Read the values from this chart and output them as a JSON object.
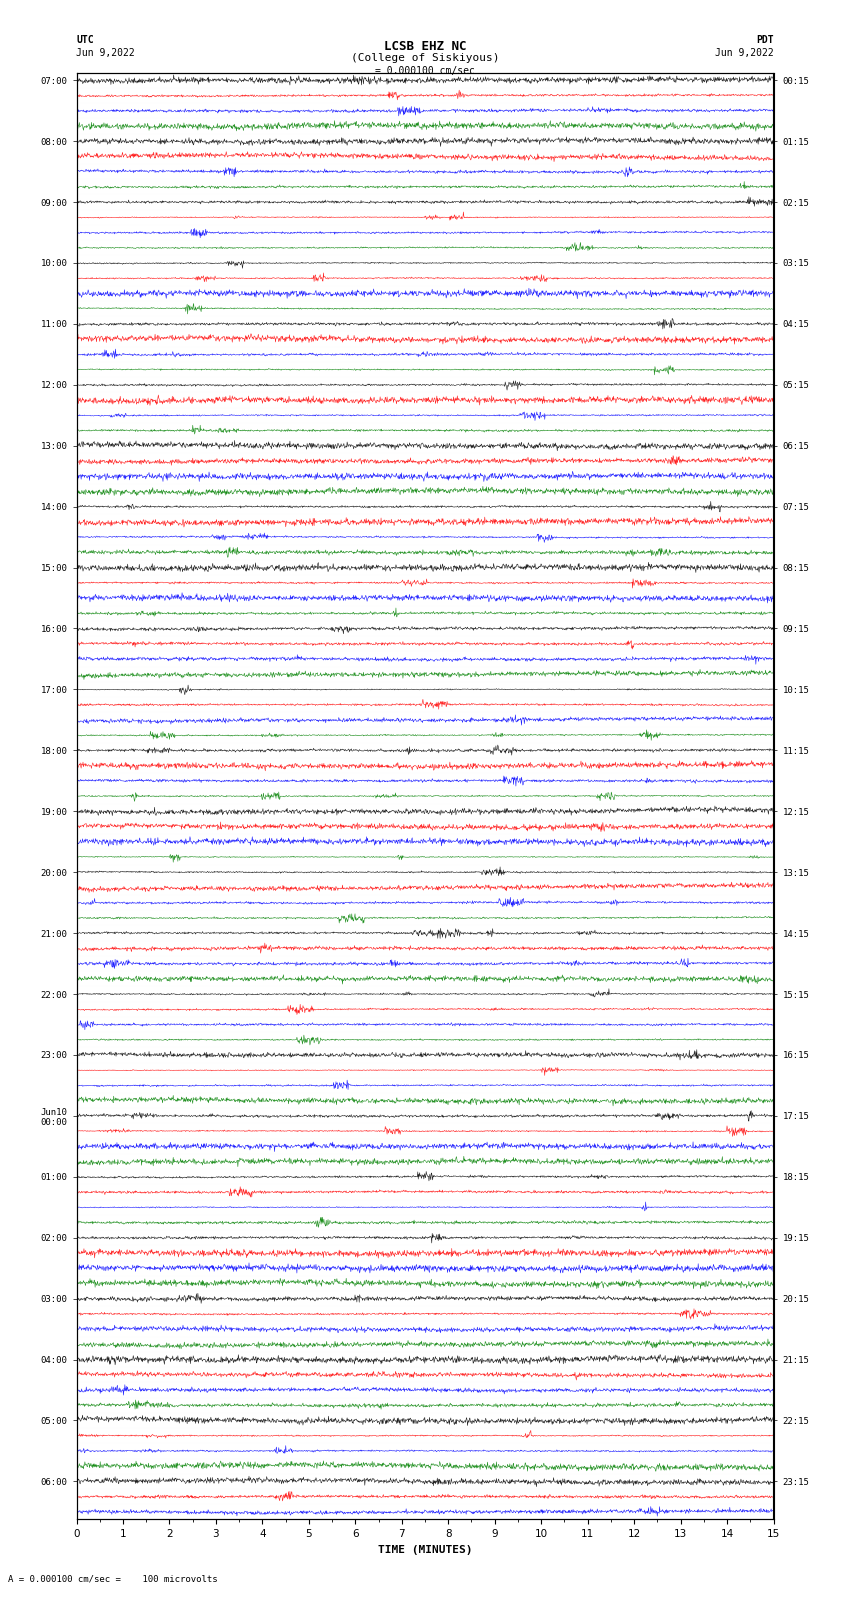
{
  "title_line1": "LCSB EHZ NC",
  "title_line2": "(College of Siskiyous)",
  "scale_text": "= 0.000100 cm/sec",
  "bottom_text": "= 0.000100 cm/sec =    100 microvolts",
  "utc_label": "UTC",
  "utc_date": "Jun 9,2022",
  "pdt_label": "PDT",
  "pdt_date": "Jun 9,2022",
  "xlabel": "TIME (MINUTES)",
  "left_times": [
    "07:00",
    "",
    "",
    "",
    "08:00",
    "",
    "",
    "",
    "09:00",
    "",
    "",
    "",
    "10:00",
    "",
    "",
    "",
    "11:00",
    "",
    "",
    "",
    "12:00",
    "",
    "",
    "",
    "13:00",
    "",
    "",
    "",
    "14:00",
    "",
    "",
    "",
    "15:00",
    "",
    "",
    "",
    "16:00",
    "",
    "",
    "",
    "17:00",
    "",
    "",
    "",
    "18:00",
    "",
    "",
    "",
    "19:00",
    "",
    "",
    "",
    "20:00",
    "",
    "",
    "",
    "21:00",
    "",
    "",
    "",
    "22:00",
    "",
    "",
    "",
    "23:00",
    "",
    "",
    "",
    "Jun10\n00:00",
    "",
    "",
    "",
    "01:00",
    "",
    "",
    "",
    "02:00",
    "",
    "",
    "",
    "03:00",
    "",
    "",
    "",
    "04:00",
    "",
    "",
    "",
    "05:00",
    "",
    "",
    "",
    "06:00",
    "",
    ""
  ],
  "right_times": [
    "00:15",
    "",
    "",
    "",
    "01:15",
    "",
    "",
    "",
    "02:15",
    "",
    "",
    "",
    "03:15",
    "",
    "",
    "",
    "04:15",
    "",
    "",
    "",
    "05:15",
    "",
    "",
    "",
    "06:15",
    "",
    "",
    "",
    "07:15",
    "",
    "",
    "",
    "08:15",
    "",
    "",
    "",
    "09:15",
    "",
    "",
    "",
    "10:15",
    "",
    "",
    "",
    "11:15",
    "",
    "",
    "",
    "12:15",
    "",
    "",
    "",
    "13:15",
    "",
    "",
    "",
    "14:15",
    "",
    "",
    "",
    "15:15",
    "",
    "",
    "",
    "16:15",
    "",
    "",
    "",
    "17:15",
    "",
    "",
    "",
    "18:15",
    "",
    "",
    "",
    "19:15",
    "",
    "",
    "",
    "20:15",
    "",
    "",
    "",
    "21:15",
    "",
    "",
    "",
    "22:15",
    "",
    "",
    "",
    "23:15",
    "",
    ""
  ],
  "trace_colors": [
    "black",
    "red",
    "blue",
    "green"
  ],
  "n_minutes": 15,
  "n_rows": 95,
  "amplitude": 0.35,
  "noise_seed": 42,
  "background_color": "white",
  "trace_linewidth": 0.4
}
